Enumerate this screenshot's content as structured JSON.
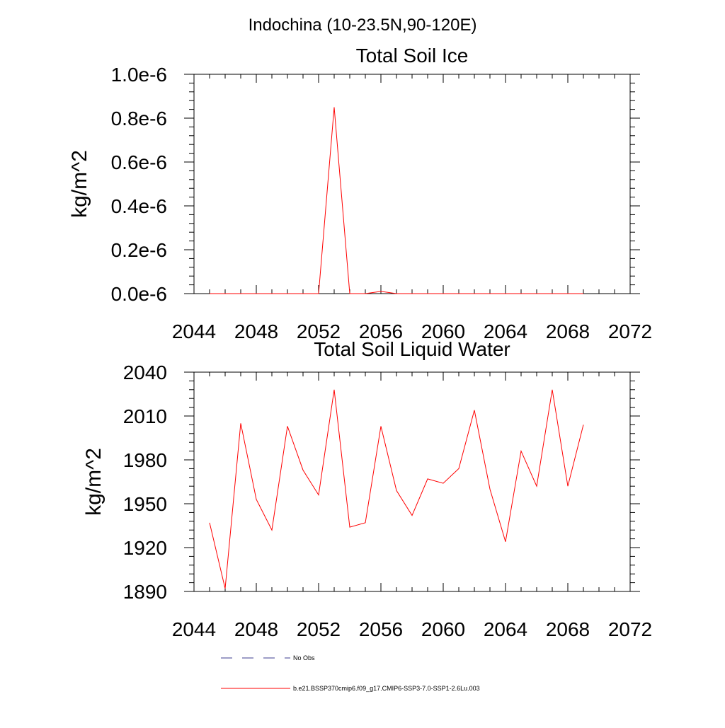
{
  "figure": {
    "title": "Indochina (10-23.5N,90-120E)"
  },
  "chart_data": [
    {
      "type": "line",
      "title": "Total Soil Ice",
      "xlabel": "",
      "ylabel": "kg/m^2",
      "xlim": [
        2044,
        2072
      ],
      "ylim": [
        0,
        1.0
      ],
      "x_ticks": [
        2044,
        2048,
        2052,
        2056,
        2060,
        2064,
        2068,
        2072
      ],
      "x_tick_labels": [
        "2044",
        "2048",
        "2052",
        "2056",
        "2060",
        "2064",
        "2068",
        "2072"
      ],
      "y_ticks": [
        0,
        0.2,
        0.4,
        0.6,
        0.8,
        1.0
      ],
      "y_tick_labels": [
        "0.0e-6",
        "0.2e-6",
        "0.4e-6",
        "0.6e-6",
        "0.8e-6",
        "1.0e-6"
      ],
      "y_unit_scale": "e-6",
      "grid": false,
      "series": [
        {
          "name": "b.e21.BSSP370cmip6.f09_g17.CMIP6-SSP3-7.0-SSP1-2.6Lu.003",
          "color": "#ff0000",
          "x": [
            2045,
            2046,
            2047,
            2048,
            2049,
            2050,
            2051,
            2052,
            2053,
            2054,
            2055,
            2056,
            2057,
            2058,
            2059,
            2060,
            2061,
            2062,
            2063,
            2064,
            2065,
            2066,
            2067,
            2068,
            2069
          ],
          "y": [
            0,
            0,
            0,
            0,
            0,
            0,
            0,
            0,
            0.85,
            0,
            0,
            0.01,
            0,
            0,
            0,
            0,
            0,
            0,
            0,
            0,
            0,
            0,
            0,
            0,
            0
          ]
        }
      ]
    },
    {
      "type": "line",
      "title": "Total Soil Liquid Water",
      "xlabel": "",
      "ylabel": "kg/m^2",
      "xlim": [
        2044,
        2072
      ],
      "ylim": [
        1890,
        2040
      ],
      "x_ticks": [
        2044,
        2048,
        2052,
        2056,
        2060,
        2064,
        2068,
        2072
      ],
      "x_tick_labels": [
        "2044",
        "2048",
        "2052",
        "2056",
        "2060",
        "2064",
        "2068",
        "2072"
      ],
      "y_ticks": [
        1890,
        1920,
        1950,
        1980,
        2010,
        2040
      ],
      "y_tick_labels": [
        "1890",
        "1920",
        "1950",
        "1980",
        "2010",
        "2040"
      ],
      "grid": false,
      "series": [
        {
          "name": "b.e21.BSSP370cmip6.f09_g17.CMIP6-SSP3-7.0-SSP1-2.6Lu.003",
          "color": "#ff0000",
          "x": [
            2045,
            2046,
            2047,
            2048,
            2049,
            2050,
            2051,
            2052,
            2053,
            2054,
            2055,
            2056,
            2057,
            2058,
            2059,
            2060,
            2061,
            2062,
            2063,
            2064,
            2065,
            2066,
            2067,
            2068,
            2069
          ],
          "y": [
            1937,
            1892,
            2005,
            1953,
            1932,
            2003,
            1973,
            1956,
            2028,
            1934,
            1937,
            2003,
            1959,
            1942,
            1967,
            1964,
            1974,
            2014,
            1960,
            1924,
            1986,
            1962,
            2028,
            1962,
            2004
          ]
        }
      ]
    }
  ],
  "legend": {
    "placement": "bottom",
    "items": [
      {
        "label": "No Obs",
        "color": "#3b3b8f",
        "style": "dashed"
      },
      {
        "label": "b.e21.BSSP370cmip6.f09_g17.CMIP6-SSP3-7.0-SSP1-2.6Lu.003",
        "color": "#ff0000",
        "style": "solid"
      }
    ]
  }
}
